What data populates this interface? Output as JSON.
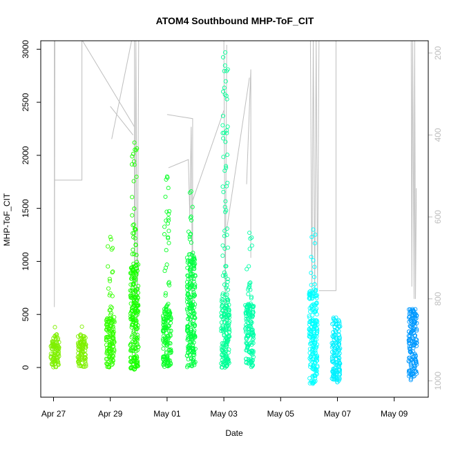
{
  "chart_data": {
    "type": "scatter",
    "title": "ATOM4 Southbound MHP-ToF_CIT",
    "xlabel": "Date",
    "ylabel": "MHP-ToF_CIT",
    "x_tick_labels": [
      "Apr 27",
      "Apr 29",
      "May 01",
      "May 03",
      "May 05",
      "May 07",
      "May 09"
    ],
    "x_tick_days": [
      0,
      2,
      4,
      6,
      8,
      10,
      12
    ],
    "xlim_days": [
      -0.45,
      13.2
    ],
    "ylim": [
      -280,
      3080
    ],
    "y_ticks": [
      0,
      500,
      1000,
      1500,
      2000,
      2500,
      3000
    ],
    "y2_ticks": [
      200,
      400,
      600,
      800,
      1000
    ],
    "y2lim": [
      1040,
      170
    ],
    "y2_color": "#bebebe",
    "grid": false,
    "legend": "none",
    "clusters": [
      {
        "day": 0.05,
        "color": "#7ff000",
        "y_min": 0,
        "y_max": 300,
        "y_out_max": 380
      },
      {
        "day": 1.0,
        "color": "#7ff000",
        "y_min": 0,
        "y_max": 300,
        "y_out_max": 385
      },
      {
        "day": 2.0,
        "color": "#33ff00",
        "y_min": 0,
        "y_max": 480,
        "y_out_max": 1230
      },
      {
        "day": 2.85,
        "color": "#19ff00",
        "y_min": -20,
        "y_max": 1000,
        "y_out_max": 2120
      },
      {
        "day": 4.0,
        "color": "#0aff27",
        "y_min": 0,
        "y_max": 550,
        "y_out_max": 1800
      },
      {
        "day": 4.85,
        "color": "#00ff40",
        "y_min": 0,
        "y_max": 1050,
        "y_out_max": 1660
      },
      {
        "day": 6.05,
        "color": "#00ff96",
        "y_min": 0,
        "y_max": 650,
        "y_out_max": 2970
      },
      {
        "day": 6.9,
        "color": "#00ffa8",
        "y_min": 0,
        "y_max": 600,
        "y_out_max": 1270
      },
      {
        "day": 9.15,
        "color": "#00ffff",
        "y_min": -160,
        "y_max": 720,
        "y_out_max": 1300
      },
      {
        "day": 9.95,
        "color": "#00f0ff",
        "y_min": -140,
        "y_max": 470,
        "y_out_max": 470
      },
      {
        "day": 12.65,
        "color": "#0099ff",
        "y_min": -120,
        "y_max": 550,
        "y_out_max": 550
      }
    ],
    "depth_series": {
      "name": "",
      "color": "#bebebe",
      "segments": [
        [
          [
            0.03,
            170
          ],
          [
            0.03,
            820
          ],
          [
            0.05,
            170
          ]
        ],
        [
          [
            0.05,
            510
          ],
          [
            1.0,
            510
          ],
          [
            1.0,
            170
          ]
        ],
        [
          [
            1.02,
            170
          ],
          [
            2.85,
            380
          ]
        ],
        [
          [
            2.75,
            170
          ],
          [
            2.05,
            410
          ]
        ],
        [
          [
            2.0,
            330
          ],
          [
            2.8,
            400
          ]
        ],
        [
          [
            2.85,
            170
          ],
          [
            2.85,
            940
          ],
          [
            2.9,
            170
          ],
          [
            2.95,
            900
          ],
          [
            3.0,
            170
          ]
        ],
        [
          [
            4.0,
            350
          ],
          [
            4.9,
            360
          ],
          [
            4.9,
            900
          ]
        ],
        [
          [
            4.05,
            480
          ],
          [
            4.75,
            460
          ],
          [
            4.8,
            600
          ],
          [
            4.85,
            380
          ],
          [
            4.9,
            860
          ]
        ],
        [
          [
            4.9,
            560
          ],
          [
            6.0,
            340
          ]
        ],
        [
          [
            6.0,
            170
          ],
          [
            6.05,
            860
          ],
          [
            6.1,
            180
          ]
        ],
        [
          [
            6.1,
            630
          ],
          [
            6.9,
            260
          ]
        ],
        [
          [
            6.8,
            520
          ],
          [
            6.95,
            240
          ],
          [
            6.95,
            700
          ]
        ],
        [
          [
            9.05,
            170
          ],
          [
            9.1,
            780
          ],
          [
            9.15,
            170
          ],
          [
            9.2,
            790
          ],
          [
            9.25,
            170
          ],
          [
            9.3,
            780
          ],
          [
            9.35,
            170
          ]
        ],
        [
          [
            9.35,
            780
          ],
          [
            9.95,
            780
          ],
          [
            9.95,
            170
          ],
          [
            10.0,
            170
          ]
        ],
        [
          [
            12.6,
            170
          ],
          [
            12.62,
            770
          ],
          [
            12.65,
            170
          ],
          [
            12.7,
            800
          ],
          [
            12.72,
            170
          ],
          [
            12.75,
            800
          ],
          [
            12.78,
            530
          ]
        ]
      ]
    }
  }
}
